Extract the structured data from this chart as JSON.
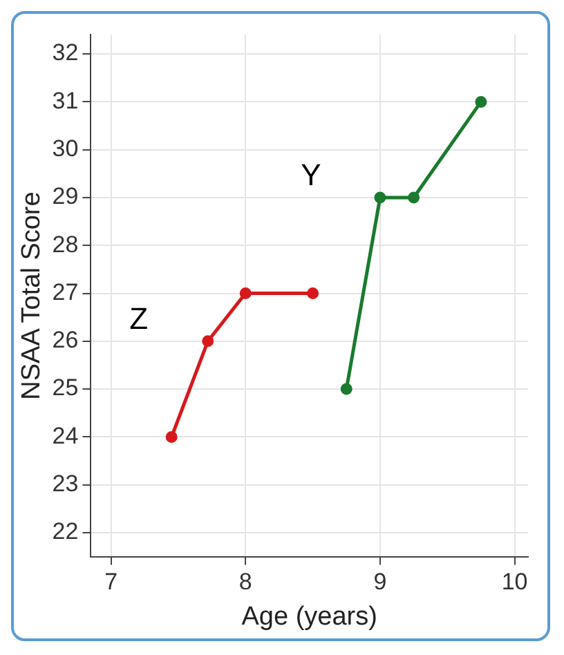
{
  "chart_data": {
    "type": "line",
    "xlabel": "Age (years)",
    "ylabel": "NSAA Total Score",
    "xlim": [
      6.85,
      10.1
    ],
    "xticks": [
      7,
      8,
      9,
      10
    ],
    "ylim": [
      21.5,
      32.4
    ],
    "yticks": [
      22,
      23,
      24,
      25,
      26,
      27,
      28,
      29,
      30,
      31,
      32
    ],
    "grid": true,
    "marker": "circle",
    "line_style": "solid",
    "legend": false,
    "series": [
      {
        "name": "Z",
        "color": "#d7191c",
        "x": [
          7.45,
          7.72,
          8.0,
          8.5
        ],
        "values": [
          24,
          26,
          27,
          27
        ]
      },
      {
        "name": "Y",
        "color": "#1a7a2e",
        "x": [
          8.75,
          9.0,
          9.25,
          9.75
        ],
        "values": [
          25,
          29,
          29,
          31
        ]
      }
    ]
  }
}
